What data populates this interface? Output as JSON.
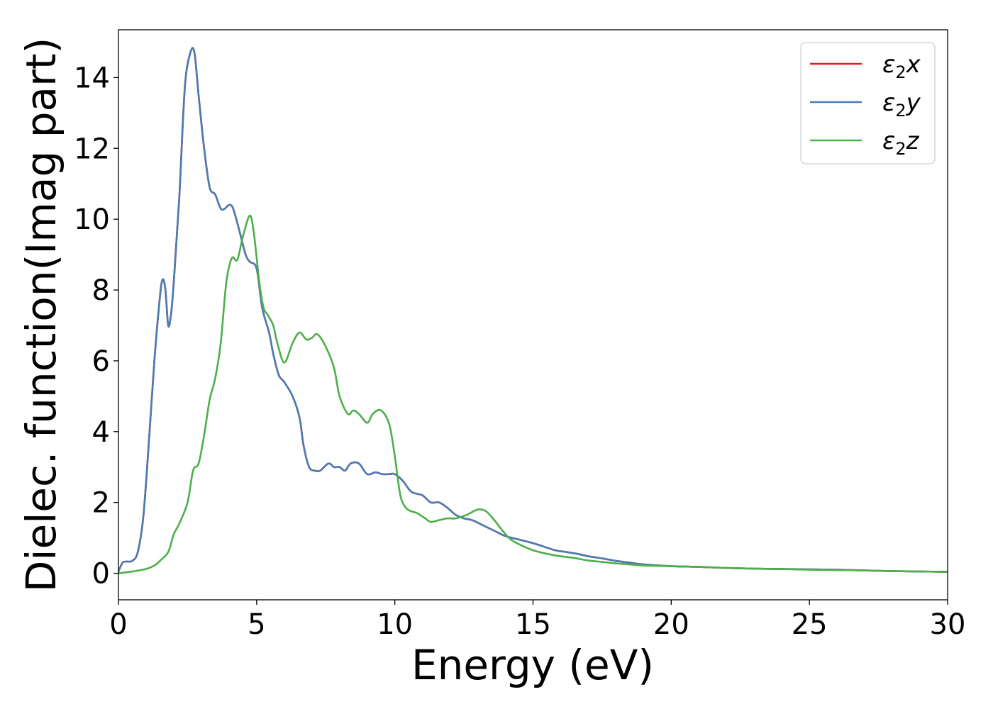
{
  "chart_data": {
    "type": "line",
    "title": "",
    "xlabel": "Energy (eV)",
    "ylabel": "Dielec. function(Imag part)",
    "xlim": [
      0,
      30
    ],
    "ylim": [
      -0.75,
      15.35
    ],
    "xticks": [
      0,
      5,
      10,
      15,
      20,
      25,
      30
    ],
    "yticks": [
      0,
      2,
      4,
      6,
      8,
      10,
      12,
      14
    ],
    "grid": false,
    "legend_position": "top-right",
    "series": [
      {
        "name": "ε₂x",
        "legend": {
          "symbol": "ε",
          "sub": "2",
          "var": "x"
        },
        "color": "#e41a1c",
        "x": [
          0,
          0.15,
          0.3,
          0.5,
          0.7,
          0.9,
          1.1,
          1.3,
          1.5,
          1.6,
          1.7,
          1.8,
          1.9,
          2.0,
          2.2,
          2.4,
          2.6,
          2.75,
          2.9,
          3.1,
          3.3,
          3.5,
          3.7,
          3.85,
          4.0,
          4.15,
          4.4,
          4.6,
          4.75,
          5.0,
          5.2,
          5.45,
          5.6,
          5.8,
          6.0,
          6.3,
          6.55,
          6.7,
          6.9,
          7.1,
          7.3,
          7.6,
          7.8,
          8.0,
          8.2,
          8.4,
          8.7,
          9.0,
          9.3,
          9.55,
          9.8,
          10.0,
          10.3,
          10.6,
          11.0,
          11.3,
          11.6,
          11.9,
          12.2,
          12.5,
          12.8,
          13.2,
          13.6,
          14.0,
          14.5,
          15.0,
          15.4,
          15.8,
          16.2,
          16.6,
          17.0,
          17.5,
          18.0,
          18.5,
          19.0,
          20.0,
          21.0,
          22.0,
          23.0,
          24.0,
          25.0,
          26.0,
          27.0,
          28.0,
          29.0,
          30.0
        ],
        "y": [
          0.05,
          0.3,
          0.33,
          0.35,
          0.6,
          1.6,
          3.7,
          6.0,
          7.8,
          8.3,
          8.0,
          7.0,
          7.3,
          8.2,
          10.6,
          13.7,
          14.7,
          14.7,
          13.5,
          12.0,
          10.9,
          10.7,
          10.3,
          10.3,
          10.4,
          10.3,
          9.6,
          9.0,
          8.8,
          8.6,
          7.5,
          6.8,
          6.2,
          5.6,
          5.4,
          5.0,
          4.4,
          3.6,
          3.0,
          2.9,
          2.9,
          3.1,
          3.0,
          3.0,
          2.9,
          3.1,
          3.1,
          2.8,
          2.85,
          2.8,
          2.8,
          2.8,
          2.6,
          2.3,
          2.2,
          2.0,
          2.0,
          1.85,
          1.65,
          1.55,
          1.5,
          1.35,
          1.2,
          1.05,
          0.95,
          0.85,
          0.75,
          0.65,
          0.6,
          0.55,
          0.48,
          0.42,
          0.35,
          0.3,
          0.25,
          0.2,
          0.18,
          0.15,
          0.13,
          0.12,
          0.11,
          0.1,
          0.08,
          0.06,
          0.05,
          0.04
        ]
      },
      {
        "name": "ε₂y",
        "legend": {
          "symbol": "ε",
          "sub": "2",
          "var": "y"
        },
        "color": "#4a7cb4",
        "x": [
          0,
          0.15,
          0.3,
          0.5,
          0.7,
          0.9,
          1.1,
          1.3,
          1.5,
          1.6,
          1.7,
          1.8,
          1.9,
          2.0,
          2.2,
          2.4,
          2.6,
          2.75,
          2.9,
          3.1,
          3.3,
          3.5,
          3.7,
          3.85,
          4.0,
          4.15,
          4.4,
          4.6,
          4.75,
          5.0,
          5.2,
          5.45,
          5.6,
          5.8,
          6.0,
          6.3,
          6.55,
          6.7,
          6.9,
          7.1,
          7.3,
          7.6,
          7.8,
          8.0,
          8.2,
          8.4,
          8.7,
          9.0,
          9.3,
          9.55,
          9.8,
          10.0,
          10.3,
          10.6,
          11.0,
          11.3,
          11.6,
          11.9,
          12.2,
          12.5,
          12.8,
          13.2,
          13.6,
          14.0,
          14.5,
          15.0,
          15.4,
          15.8,
          16.2,
          16.6,
          17.0,
          17.5,
          18.0,
          18.5,
          19.0,
          20.0,
          21.0,
          22.0,
          23.0,
          24.0,
          25.0,
          26.0,
          27.0,
          28.0,
          29.0,
          30.0
        ],
        "y": [
          0.05,
          0.3,
          0.33,
          0.35,
          0.6,
          1.6,
          3.7,
          6.0,
          7.8,
          8.3,
          8.0,
          7.0,
          7.3,
          8.2,
          10.6,
          13.7,
          14.7,
          14.7,
          13.5,
          12.0,
          10.9,
          10.7,
          10.3,
          10.3,
          10.4,
          10.3,
          9.6,
          9.0,
          8.8,
          8.6,
          7.5,
          6.8,
          6.2,
          5.6,
          5.4,
          5.0,
          4.4,
          3.6,
          3.0,
          2.9,
          2.9,
          3.1,
          3.0,
          3.0,
          2.9,
          3.1,
          3.1,
          2.8,
          2.85,
          2.8,
          2.8,
          2.8,
          2.6,
          2.3,
          2.2,
          2.0,
          2.0,
          1.85,
          1.65,
          1.55,
          1.5,
          1.35,
          1.2,
          1.05,
          0.95,
          0.85,
          0.75,
          0.65,
          0.6,
          0.55,
          0.48,
          0.42,
          0.35,
          0.3,
          0.25,
          0.2,
          0.18,
          0.15,
          0.13,
          0.12,
          0.11,
          0.1,
          0.08,
          0.06,
          0.05,
          0.04
        ]
      },
      {
        "name": "ε₂z",
        "legend": {
          "symbol": "ε",
          "sub": "2",
          "var": "z"
        },
        "color": "#4daf4a",
        "x": [
          0,
          0.5,
          1.0,
          1.3,
          1.5,
          1.8,
          2.0,
          2.2,
          2.5,
          2.7,
          2.9,
          3.1,
          3.3,
          3.5,
          3.7,
          3.9,
          4.1,
          4.3,
          4.5,
          4.75,
          4.9,
          5.1,
          5.25,
          5.4,
          5.6,
          5.75,
          6.0,
          6.3,
          6.55,
          6.8,
          7.0,
          7.2,
          7.5,
          7.8,
          8.0,
          8.3,
          8.5,
          8.7,
          9.0,
          9.2,
          9.5,
          9.8,
          10.0,
          10.2,
          10.4,
          10.6,
          10.8,
          11.1,
          11.3,
          11.6,
          11.9,
          12.2,
          12.6,
          13.0,
          13.3,
          13.6,
          13.9,
          14.2,
          14.6,
          15.0,
          15.5,
          16.0,
          16.5,
          17.0,
          17.5,
          18.0,
          18.5,
          19.0,
          20.0,
          21.0,
          22.0,
          23.0,
          24.0,
          25.0,
          26.0,
          27.0,
          28.0,
          29.0,
          30.0
        ],
        "y": [
          0.0,
          0.05,
          0.12,
          0.22,
          0.35,
          0.6,
          1.1,
          1.4,
          2.0,
          2.9,
          3.1,
          3.9,
          4.9,
          5.5,
          6.5,
          8.2,
          8.9,
          8.85,
          9.5,
          10.1,
          9.6,
          8.2,
          7.5,
          7.3,
          7.0,
          6.5,
          5.95,
          6.5,
          6.8,
          6.6,
          6.65,
          6.75,
          6.4,
          5.8,
          5.0,
          4.5,
          4.6,
          4.5,
          4.25,
          4.5,
          4.6,
          4.2,
          3.3,
          2.2,
          1.85,
          1.75,
          1.7,
          1.55,
          1.45,
          1.5,
          1.55,
          1.55,
          1.65,
          1.8,
          1.75,
          1.5,
          1.2,
          0.95,
          0.78,
          0.65,
          0.55,
          0.48,
          0.43,
          0.36,
          0.32,
          0.28,
          0.25,
          0.22,
          0.2,
          0.18,
          0.15,
          0.13,
          0.12,
          0.1,
          0.09,
          0.08,
          0.06,
          0.05,
          0.04
        ]
      }
    ]
  }
}
